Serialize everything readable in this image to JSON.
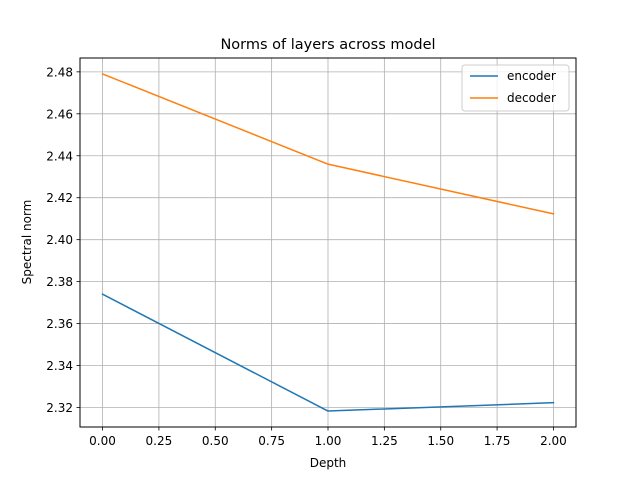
{
  "chart_data": {
    "type": "line",
    "title": "Norms of layers across model",
    "xlabel": "Depth",
    "ylabel": "Spectral norm",
    "xlim": [
      -0.1,
      2.1
    ],
    "ylim": [
      2.3107,
      2.4866
    ],
    "x_ticks": [
      "0.00",
      "0.25",
      "0.50",
      "0.75",
      "1.00",
      "1.25",
      "1.50",
      "1.75",
      "2.00"
    ],
    "y_ticks": [
      "2.32",
      "2.34",
      "2.36",
      "2.38",
      "2.40",
      "2.42",
      "2.44",
      "2.46",
      "2.48"
    ],
    "grid": true,
    "legend_position": "upper right",
    "x": [
      0,
      1,
      2
    ],
    "series": [
      {
        "name": "encoder",
        "color": "#1f77b4",
        "values": [
          2.374,
          2.3183,
          2.3223
        ]
      },
      {
        "name": "decoder",
        "color": "#ff7f0e",
        "values": [
          2.479,
          2.436,
          2.4123
        ]
      }
    ]
  }
}
